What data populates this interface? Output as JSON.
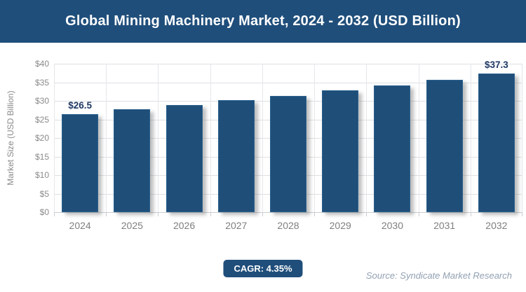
{
  "header": {
    "title": "Global Mining Machinery Market, 2024 - 2032 (USD Billion)"
  },
  "chart_data": {
    "type": "bar",
    "title": "Global Mining Machinery Market, 2024 - 2032 (USD Billion)",
    "categories": [
      "2024",
      "2025",
      "2026",
      "2027",
      "2028",
      "2029",
      "2030",
      "2031",
      "2032"
    ],
    "values": [
      26.5,
      27.65,
      28.85,
      30.1,
      31.4,
      32.8,
      34.2,
      35.7,
      37.3
    ],
    "bar_labels": [
      "$26.5",
      null,
      null,
      null,
      null,
      null,
      null,
      null,
      "$37.3"
    ],
    "ylabel": "Market Size (USD Billion)",
    "xlabel": "",
    "ylim": [
      0,
      40
    ],
    "ytick_step": 5,
    "ytick_labels": [
      "$0",
      "$5",
      "$10",
      "$15",
      "$20",
      "$25",
      "$30",
      "$35",
      "$40"
    ],
    "grid": true,
    "legend": false,
    "bar_color": "#1F4E79"
  },
  "footer": {
    "cagr_badge": "CAGR: 4.35%",
    "source": "Source: Syndicate Market Research"
  },
  "colors": {
    "title_bg": "#1F4E7B",
    "title_text": "#FFFFFF",
    "bar_fill": "#1F4E79",
    "bar_border": "#2B628F",
    "data_label": "#1F3864",
    "axis_text": "#8A8A8A",
    "x_label": "#7F7F7F",
    "gridline": "#DCDFE2",
    "badge_bg": "#1F4E7B",
    "badge_text": "#FFFFFF",
    "source_text": "#92A1B2"
  }
}
